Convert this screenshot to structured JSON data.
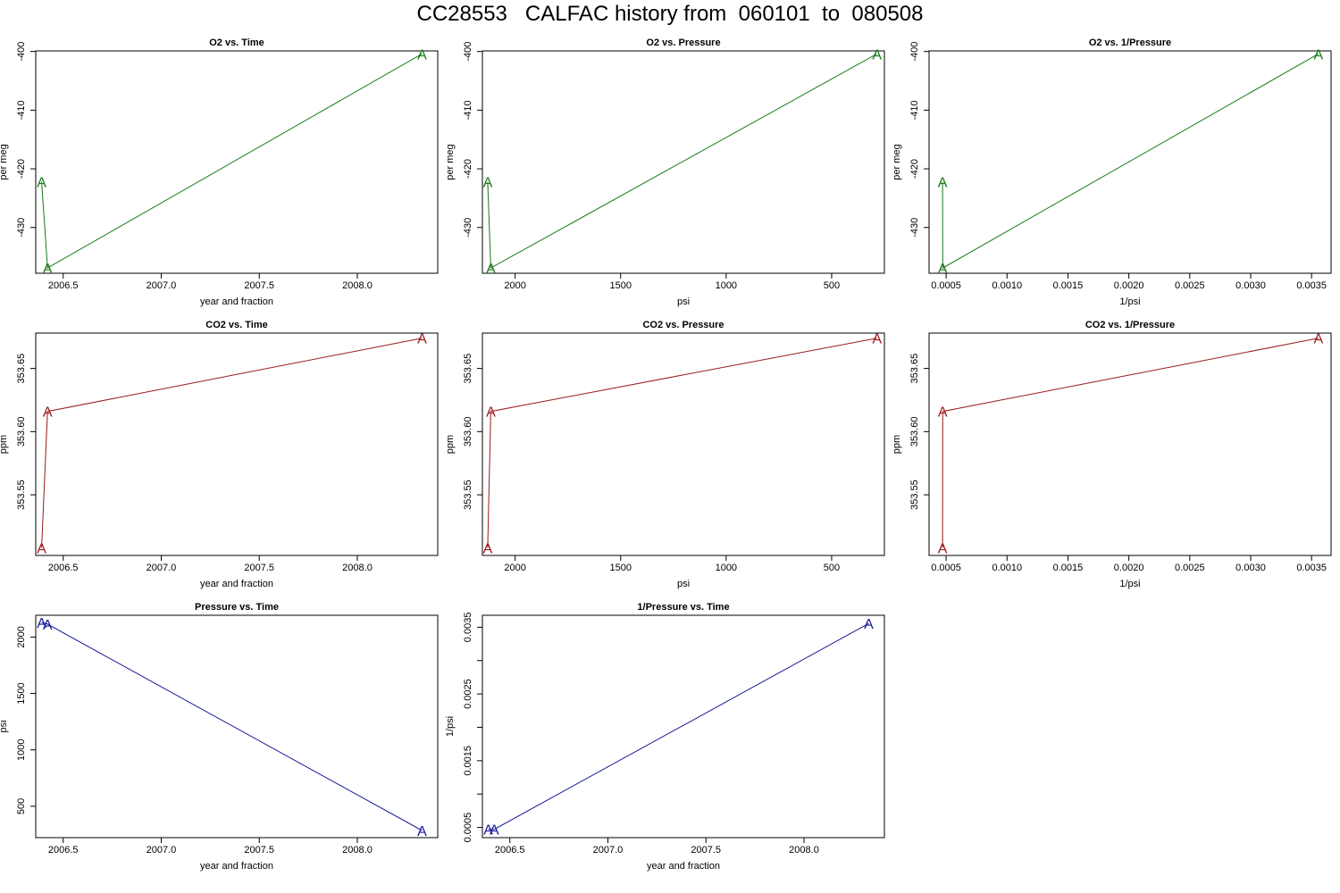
{
  "title": "CC28553   CALFAC history from  060101  to  080508",
  "colors": {
    "o2": "#1a7a1a",
    "co2": "#9b1a1a",
    "pressure": "#1a1a9b",
    "axis": "#000000"
  },
  "marker": "A",
  "chart_data": [
    {
      "type": "line",
      "title": "O2 vs. Time",
      "xlabel": "year and fraction",
      "ylabel": "per meg",
      "color_key": "o2",
      "x": [
        2006.39,
        2006.42,
        2008.33
      ],
      "y": [
        -422.2,
        -436.9,
        -400.4
      ],
      "xlim": [
        2006.36,
        2008.41
      ],
      "xreverse": false,
      "ylim": [
        -437.8,
        -399.9
      ],
      "xticks": [
        2006.5,
        2007.0,
        2007.5,
        2008.0
      ],
      "xtick_labels": [
        "2006.5",
        "2007.0",
        "2007.5",
        "2008.0"
      ],
      "yticks": [
        -400,
        -410,
        -420,
        -430
      ],
      "ytick_labels": [
        "-400",
        "-410",
        "-420",
        "-430"
      ]
    },
    {
      "type": "line",
      "title": "O2 vs. Pressure",
      "xlabel": "psi",
      "ylabel": "per meg",
      "color_key": "o2",
      "x": [
        2130,
        2115,
        285
      ],
      "y": [
        -422.2,
        -436.9,
        -400.4
      ],
      "xlim": [
        2155,
        250
      ],
      "xreverse": true,
      "ylim": [
        -437.8,
        -399.9
      ],
      "xticks": [
        2000,
        1500,
        1000,
        500
      ],
      "xtick_labels": [
        "2000",
        "1500",
        "1000",
        "500"
      ],
      "yticks": [
        -400,
        -410,
        -420,
        -430
      ],
      "ytick_labels": [
        "-400",
        "-410",
        "-420",
        "-430"
      ]
    },
    {
      "type": "line",
      "title": "O2 vs. 1/Pressure",
      "xlabel": "1/psi",
      "ylabel": "per meg",
      "color_key": "o2",
      "x": [
        0.000471,
        0.000472,
        0.003556
      ],
      "y": [
        -422.2,
        -436.9,
        -400.4
      ],
      "xlim": [
        0.00036,
        0.00366
      ],
      "xreverse": false,
      "ylim": [
        -437.8,
        -399.9
      ],
      "xticks": [
        0.0005,
        0.001,
        0.0015,
        0.002,
        0.0025,
        0.003,
        0.0035
      ],
      "xtick_labels": [
        "0.0005",
        "0.0010",
        "0.0015",
        "0.0020",
        "0.0025",
        "0.0030",
        "0.0035"
      ],
      "yticks": [
        -400,
        -410,
        -420,
        -430
      ],
      "ytick_labels": [
        "-400",
        "-410",
        "-420",
        "-430"
      ]
    },
    {
      "type": "line",
      "title": "CO2 vs. Time",
      "xlabel": "year and fraction",
      "ylabel": "ppm",
      "color_key": "co2",
      "x": [
        2006.39,
        2006.42,
        2008.33
      ],
      "y": [
        353.508,
        353.616,
        353.674
      ],
      "xlim": [
        2006.36,
        2008.41
      ],
      "xreverse": false,
      "ylim": [
        353.502,
        353.678
      ],
      "xticks": [
        2006.5,
        2007.0,
        2007.5,
        2008.0
      ],
      "xtick_labels": [
        "2006.5",
        "2007.0",
        "2007.5",
        "2008.0"
      ],
      "yticks": [
        353.55,
        353.6,
        353.65
      ],
      "ytick_labels": [
        "353.55",
        "353.60",
        "353.65"
      ]
    },
    {
      "type": "line",
      "title": "CO2 vs. Pressure",
      "xlabel": "psi",
      "ylabel": "ppm",
      "color_key": "co2",
      "x": [
        2130,
        2115,
        285
      ],
      "y": [
        353.508,
        353.616,
        353.674
      ],
      "xlim": [
        2155,
        250
      ],
      "xreverse": true,
      "ylim": [
        353.502,
        353.678
      ],
      "xticks": [
        2000,
        1500,
        1000,
        500
      ],
      "xtick_labels": [
        "2000",
        "1500",
        "1000",
        "500"
      ],
      "yticks": [
        353.55,
        353.6,
        353.65
      ],
      "ytick_labels": [
        "353.55",
        "353.60",
        "353.65"
      ]
    },
    {
      "type": "line",
      "title": "CO2 vs. 1/Pressure",
      "xlabel": "1/psi",
      "ylabel": "ppm",
      "color_key": "co2",
      "x": [
        0.000471,
        0.000472,
        0.003556
      ],
      "y": [
        353.508,
        353.616,
        353.674
      ],
      "xlim": [
        0.00036,
        0.00366
      ],
      "xreverse": false,
      "ylim": [
        353.502,
        353.678
      ],
      "xticks": [
        0.0005,
        0.001,
        0.0015,
        0.002,
        0.0025,
        0.003,
        0.0035
      ],
      "xtick_labels": [
        "0.0005",
        "0.0010",
        "0.0015",
        "0.0020",
        "0.0025",
        "0.0030",
        "0.0035"
      ],
      "yticks": [
        353.55,
        353.6,
        353.65
      ],
      "ytick_labels": [
        "353.55",
        "353.60",
        "353.65"
      ]
    },
    {
      "type": "line",
      "title": "Pressure vs. Time",
      "xlabel": "year and fraction",
      "ylabel": "psi",
      "color_key": "pressure",
      "x": [
        2006.39,
        2006.42,
        2008.33
      ],
      "y": [
        2130,
        2115,
        285
      ],
      "xlim": [
        2006.36,
        2008.41
      ],
      "xreverse": false,
      "ylim": [
        222,
        2193
      ],
      "xticks": [
        2006.5,
        2007.0,
        2007.5,
        2008.0
      ],
      "xtick_labels": [
        "2006.5",
        "2007.0",
        "2007.5",
        "2008.0"
      ],
      "yticks": [
        500,
        1000,
        1500,
        2000
      ],
      "ytick_labels": [
        "500",
        "1000",
        "1500",
        "2000"
      ]
    },
    {
      "type": "line",
      "title": "1/Pressure vs. Time",
      "xlabel": "year and fraction",
      "ylabel": "1/psi",
      "color_key": "pressure",
      "x": [
        2006.39,
        2006.42,
        2008.33
      ],
      "y": [
        0.000471,
        0.000472,
        0.003556
      ],
      "xlim": [
        2006.36,
        2008.41
      ],
      "xreverse": false,
      "ylim": [
        0.000347,
        0.003679
      ],
      "xticks": [
        2006.5,
        2007.0,
        2007.5,
        2008.0
      ],
      "xtick_labels": [
        "2006.5",
        "2007.0",
        "2007.5",
        "2008.0"
      ],
      "yticks": [
        0.0005,
        0.001,
        0.0015,
        0.002,
        0.0025,
        0.003,
        0.0035
      ],
      "ytick_labels": [
        "0.0005",
        "",
        "0.0015",
        "",
        "0.0025",
        "",
        "0.0035"
      ]
    }
  ]
}
